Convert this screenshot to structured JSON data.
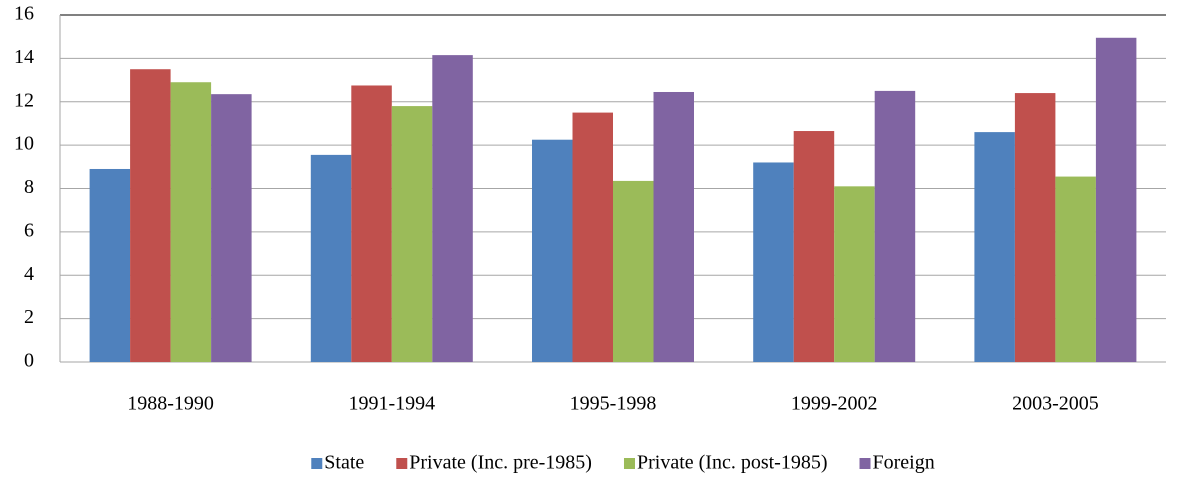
{
  "chart_data": {
    "type": "bar",
    "categories": [
      "1988-1990",
      "1991-1994",
      "1995-1998",
      "1999-2002",
      "2003-2005"
    ],
    "series": [
      {
        "name": "State",
        "color": "#4f81bd",
        "values": [
          8.9,
          9.55,
          10.25,
          9.2,
          10.6
        ]
      },
      {
        "name": "Private (Inc. pre-1985)",
        "color": "#c0504d",
        "values": [
          13.5,
          12.75,
          11.5,
          10.65,
          12.4
        ]
      },
      {
        "name": "Private (Inc. post-1985)",
        "color": "#9bbb59",
        "values": [
          12.9,
          11.8,
          8.35,
          8.1,
          8.55
        ]
      },
      {
        "name": "Foreign",
        "color": "#8064a2",
        "values": [
          12.35,
          14.15,
          12.45,
          12.5,
          14.95
        ]
      }
    ],
    "ylim": [
      0,
      16
    ],
    "yticks": [
      0,
      2,
      4,
      6,
      8,
      10,
      12,
      14,
      16
    ],
    "grid": true,
    "legend": "bottom"
  }
}
